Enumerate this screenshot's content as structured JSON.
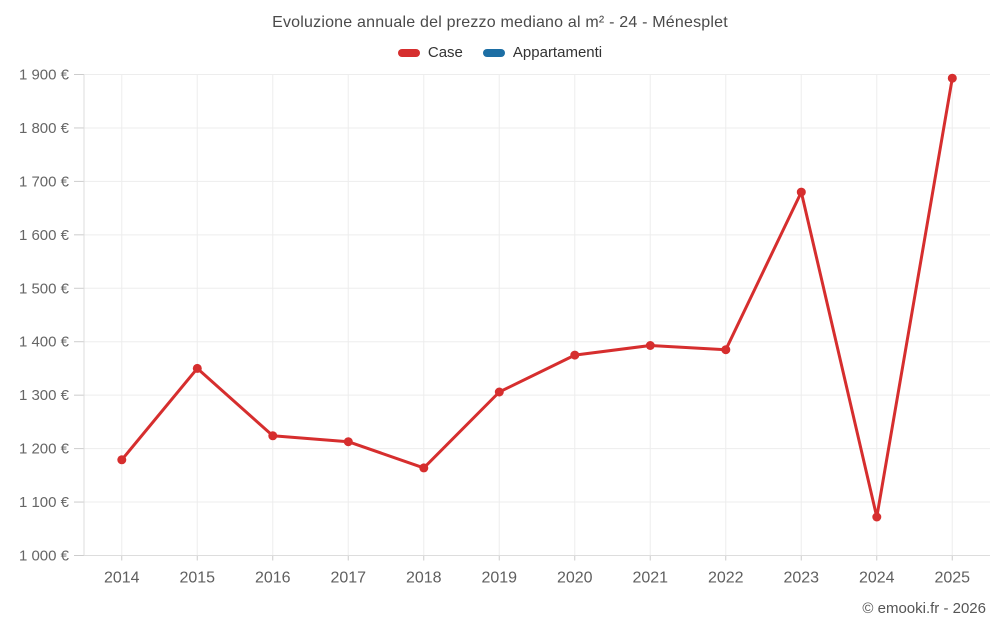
{
  "title": "Evoluzione annuale del prezzo mediano al m² - 24 - Ménesplet",
  "watermark": "© emooki.fr - 2026",
  "colors": {
    "case_red": "#d62e2e",
    "appartamenti_blue": "#1c6ea4",
    "grid": "#ededed",
    "axis": "#dddddd",
    "tick": "#cccccc",
    "y_label": "#666666",
    "x_label": "#5f5f5f",
    "title": "#4a4a4a",
    "watermark": "#555555"
  },
  "chart_data": {
    "type": "line",
    "title": "Evoluzione annuale del prezzo mediano al m² - 24 - Ménesplet",
    "categories": [
      "2014",
      "2015",
      "2016",
      "2017",
      "2018",
      "2019",
      "2020",
      "2021",
      "2022",
      "2023",
      "2024",
      "2025"
    ],
    "series": [
      {
        "name": "Case",
        "color": "#d62e2e",
        "values": [
          1179,
          1350,
          1224,
          1213,
          1164,
          1306,
          1375,
          1393,
          1385,
          1680,
          1072,
          1893
        ]
      },
      {
        "name": "Appartamenti",
        "color": "#1c6ea4",
        "values": []
      }
    ],
    "xlabel": "",
    "ylabel": "",
    "ylim": [
      1000,
      1900
    ],
    "ytick_step": 100,
    "ytick_format": "{value} €",
    "grid": true,
    "legend_position": "top",
    "marker_radius": 4.5,
    "line_width": 3
  }
}
